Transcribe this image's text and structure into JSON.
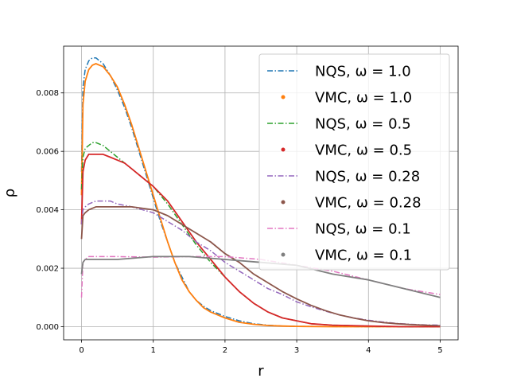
{
  "chart_data": {
    "type": "line",
    "xlabel": "r",
    "ylabel": "ρ",
    "xlim": [
      -0.25,
      5.25
    ],
    "ylim": [
      -0.00045,
      0.0096
    ],
    "xticks": [
      0,
      1,
      2,
      3,
      4,
      5
    ],
    "xtick_labels": [
      "0",
      "1",
      "2",
      "3",
      "4",
      "5"
    ],
    "yticks": [
      0.0,
      0.002,
      0.004,
      0.006,
      0.008
    ],
    "ytick_labels": [
      "0.000",
      "0.002",
      "0.004",
      "0.006",
      "0.008"
    ],
    "grid": true,
    "legend_position": "upper-right",
    "series": [
      {
        "name": "NQS, ω = 1.0",
        "color": "#1f77b4",
        "style": "dashdot",
        "x": [
          0,
          0.02,
          0.05,
          0.1,
          0.15,
          0.2,
          0.25,
          0.3,
          0.4,
          0.5,
          0.6,
          0.7,
          0.8,
          0.9,
          1.0,
          1.1,
          1.2,
          1.3,
          1.4,
          1.5,
          1.6,
          1.7,
          1.8,
          1.9,
          2.0,
          2.2,
          2.4,
          2.6,
          2.8,
          3.0,
          3.5,
          4.0,
          4.5,
          5.0
        ],
        "y": [
          0.0053,
          0.0082,
          0.0088,
          0.0091,
          0.0092,
          0.0092,
          0.0091,
          0.009,
          0.0086,
          0.0081,
          0.0075,
          0.0068,
          0.006,
          0.0052,
          0.0044,
          0.0036,
          0.0029,
          0.0022,
          0.0017,
          0.0012,
          0.0009,
          0.0007,
          0.00055,
          0.00045,
          0.00035,
          0.0002,
          0.0001,
          5e-05,
          2e-05,
          1e-05,
          5e-06,
          0.0,
          0.0,
          0.0
        ]
      },
      {
        "name": "VMC, ω = 1.0",
        "color": "#ff7f0e",
        "style": "dots",
        "x": [
          0,
          0.02,
          0.05,
          0.1,
          0.15,
          0.2,
          0.25,
          0.3,
          0.4,
          0.5,
          0.6,
          0.7,
          0.8,
          0.9,
          1.0,
          1.1,
          1.2,
          1.3,
          1.4,
          1.5,
          1.6,
          1.7,
          1.8,
          1.9,
          2.0,
          2.2,
          2.4,
          2.6,
          2.8,
          3.0,
          3.5,
          4.0,
          4.5,
          5.0
        ],
        "y": [
          0.0045,
          0.0076,
          0.0084,
          0.0088,
          0.00895,
          0.009,
          0.00895,
          0.0089,
          0.0086,
          0.0082,
          0.0076,
          0.0069,
          0.0061,
          0.0053,
          0.0045,
          0.0037,
          0.0029,
          0.0022,
          0.0016,
          0.0012,
          0.0009,
          0.00065,
          0.0005,
          0.0004,
          0.0003,
          0.00015,
          8e-05,
          4e-05,
          2e-05,
          1e-05,
          0.0,
          0.0,
          0.0,
          0.0
        ]
      },
      {
        "name": "NQS, ω = 0.5",
        "color": "#2ca02c",
        "style": "dashdot",
        "x": [
          0,
          0.02,
          0.05,
          0.1,
          0.15,
          0.2,
          0.3,
          0.4,
          0.5,
          0.6,
          0.7,
          0.8,
          0.9,
          1.0,
          1.2,
          1.4,
          1.6,
          1.8,
          2.0,
          2.2,
          2.4,
          2.6,
          2.8,
          3.0,
          3.2,
          3.5,
          4.0,
          4.5,
          5.0
        ],
        "y": [
          0.0047,
          0.0058,
          0.0061,
          0.0062,
          0.0063,
          0.0063,
          0.0062,
          0.006,
          0.0058,
          0.0056,
          0.0054,
          0.0052,
          0.005,
          0.0048,
          0.0042,
          0.0035,
          0.0028,
          0.0022,
          0.0017,
          0.0012,
          0.0008,
          0.0005,
          0.0003,
          0.0002,
          0.0001,
          5e-05,
          2e-05,
          0.0,
          0.0
        ]
      },
      {
        "name": "VMC, ω = 0.5",
        "color": "#d62728",
        "style": "dots",
        "x": [
          0,
          0.02,
          0.05,
          0.1,
          0.15,
          0.2,
          0.3,
          0.4,
          0.5,
          0.6,
          0.7,
          0.8,
          0.9,
          1.0,
          1.2,
          1.4,
          1.6,
          1.8,
          2.0,
          2.2,
          2.4,
          2.6,
          2.8,
          3.0,
          3.2,
          3.5,
          4.0,
          4.5,
          5.0
        ],
        "y": [
          0.0035,
          0.0053,
          0.0057,
          0.0059,
          0.0059,
          0.0059,
          0.0059,
          0.0058,
          0.0057,
          0.0056,
          0.0054,
          0.0052,
          0.005,
          0.0048,
          0.0043,
          0.0036,
          0.0029,
          0.0023,
          0.0017,
          0.0012,
          0.0008,
          0.0005,
          0.0003,
          0.0002,
          0.0001,
          5e-05,
          2e-05,
          0.0,
          0.0
        ]
      },
      {
        "name": "NQS, ω = 0.28",
        "color": "#9467bd",
        "style": "dashdot",
        "x": [
          0,
          0.02,
          0.05,
          0.1,
          0.2,
          0.3,
          0.4,
          0.5,
          0.7,
          1.0,
          1.2,
          1.4,
          1.6,
          1.8,
          2.0,
          2.2,
          2.4,
          2.6,
          2.8,
          3.0,
          3.2,
          3.4,
          3.6,
          3.8,
          4.0,
          4.2,
          4.4,
          4.6,
          4.8,
          5.0
        ],
        "y": [
          0.0035,
          0.004,
          0.0041,
          0.0042,
          0.0043,
          0.0043,
          0.0043,
          0.0042,
          0.0041,
          0.0039,
          0.0036,
          0.0033,
          0.0029,
          0.0026,
          0.0022,
          0.0019,
          0.0016,
          0.0013,
          0.0011,
          0.00085,
          0.00068,
          0.00053,
          0.0004,
          0.0003,
          0.00022,
          0.00016,
          0.00011,
          8e-05,
          6e-05,
          5e-05
        ]
      },
      {
        "name": "VMC, ω = 0.28",
        "color": "#8c564b",
        "style": "dots",
        "x": [
          0,
          0.02,
          0.05,
          0.1,
          0.2,
          0.3,
          0.4,
          0.5,
          0.7,
          1.0,
          1.2,
          1.4,
          1.6,
          1.8,
          2.0,
          2.2,
          2.4,
          2.6,
          2.8,
          3.0,
          3.2,
          3.4,
          3.6,
          3.8,
          4.0,
          4.2,
          4.4,
          4.6,
          4.8,
          5.0
        ],
        "y": [
          0.003,
          0.0038,
          0.0039,
          0.004,
          0.0041,
          0.0041,
          0.0041,
          0.0041,
          0.0041,
          0.004,
          0.0038,
          0.0035,
          0.0032,
          0.0029,
          0.0025,
          0.0022,
          0.0018,
          0.0015,
          0.0012,
          0.00095,
          0.00073,
          0.00055,
          0.0004,
          0.00029,
          0.0002,
          0.00014,
          0.0001,
          7e-05,
          5e-05,
          3e-05
        ]
      },
      {
        "name": "NQS, ω = 0.1",
        "color": "#e377c2",
        "style": "dashdot",
        "x": [
          0,
          0.02,
          0.05,
          0.1,
          0.3,
          0.5,
          1.0,
          1.5,
          2.0,
          2.5,
          3.0,
          3.5,
          4.0,
          4.5,
          5.0
        ],
        "y": [
          0.001,
          0.0022,
          0.0023,
          0.0024,
          0.0024,
          0.0024,
          0.00238,
          0.0024,
          0.0024,
          0.0023,
          0.0021,
          0.0019,
          0.0016,
          0.0013,
          0.0011
        ]
      },
      {
        "name": "VMC, ω = 0.1",
        "color": "#7f7f7f",
        "style": "dots",
        "x": [
          0,
          0.02,
          0.05,
          0.1,
          0.3,
          0.5,
          1.0,
          1.5,
          2.0,
          2.5,
          3.0,
          3.5,
          4.0,
          4.5,
          5.0
        ],
        "y": [
          0.0018,
          0.0022,
          0.0023,
          0.0023,
          0.0023,
          0.0023,
          0.0024,
          0.0024,
          0.0023,
          0.0022,
          0.0021,
          0.0018,
          0.0016,
          0.0013,
          0.001
        ]
      }
    ]
  }
}
